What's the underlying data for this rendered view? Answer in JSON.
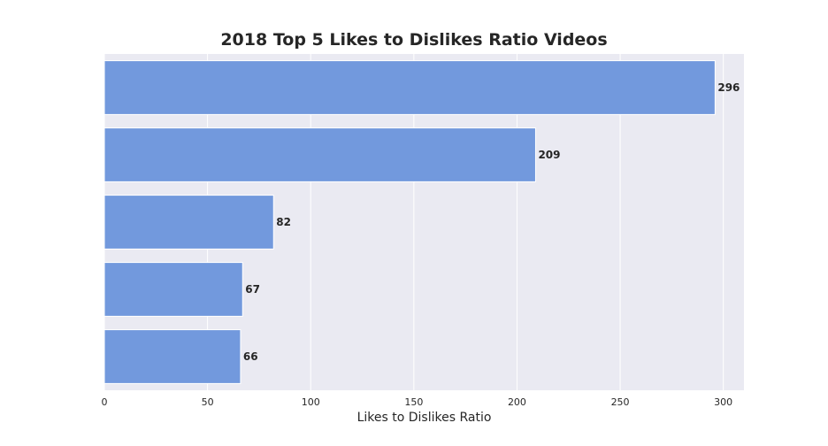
{
  "chart_data": {
    "type": "bar",
    "orientation": "horizontal",
    "title": "2018 Top 5 Likes to Dislikes Ratio Videos",
    "xlabel": "Likes to Dislikes Ratio",
    "ylabel": "",
    "categories": [
      "",
      "",
      "",
      "",
      ""
    ],
    "values": [
      296,
      209,
      82,
      67,
      66
    ],
    "data_labels": [
      "296",
      "209",
      "82",
      "67",
      "66"
    ],
    "xlim": [
      0,
      310
    ],
    "xticks": [
      0,
      50,
      100,
      150,
      200,
      250,
      300
    ],
    "xtick_labels": [
      "0",
      "50",
      "100",
      "150",
      "200",
      "250",
      "300"
    ],
    "grid": true,
    "legend": "none",
    "colors": {
      "bar": "#7299DD",
      "plot_background": "#EAEAF2",
      "grid": "#FFFFFF",
      "text": "#262626"
    }
  }
}
